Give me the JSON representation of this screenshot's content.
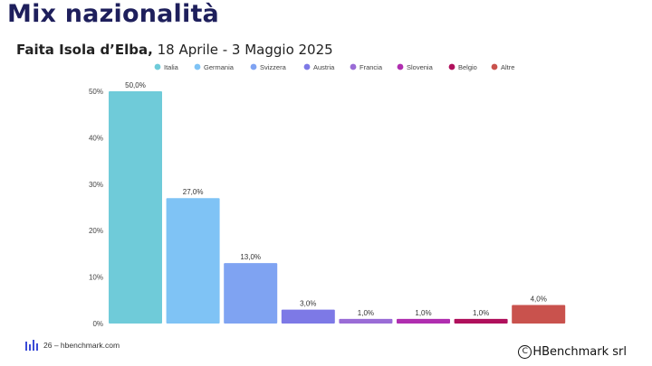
{
  "page": {
    "title": "Mix nazionalità",
    "subtitle_bold": "Faita Isola d’Elba,",
    "subtitle_rest": " 18 Aprile - 3 Maggio 2025"
  },
  "footer": {
    "page_label": "26 – hbenchmark.com",
    "copyright_symbol": "C",
    "copyright_text": "HBenchmark srl",
    "logo_icon": "bar-logo-icon"
  },
  "chart_data": {
    "type": "bar",
    "categories": [
      "Italia",
      "Germania",
      "Svizzera",
      "Austria",
      "Francia",
      "Slovenia",
      "Belgio",
      "Altre"
    ],
    "values": [
      50.0,
      27.0,
      13.0,
      3.0,
      1.0,
      1.0,
      1.0,
      4.0
    ],
    "value_labels": [
      "50,0%",
      "27,0%",
      "13,0%",
      "3,0%",
      "1,0%",
      "1,0%",
      "1,0%",
      "4,0%"
    ],
    "colors": [
      "#6fcbd9",
      "#7fc3f5",
      "#7fa3f2",
      "#7d79e6",
      "#9a6cd6",
      "#b02eb0",
      "#b0105c",
      "#c9524d"
    ],
    "yticks": [
      0,
      10,
      20,
      30,
      40,
      50
    ],
    "ytick_labels": [
      "0%",
      "10%",
      "20%",
      "30%",
      "40%",
      "50%"
    ],
    "ylim": [
      0,
      50
    ],
    "grid": false,
    "legend_position": "top"
  }
}
